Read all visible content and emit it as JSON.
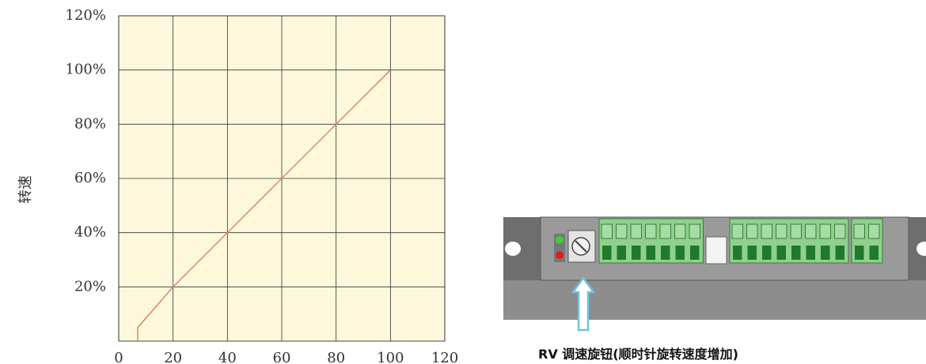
{
  "chart_data": {
    "type": "line",
    "y_label": "转速",
    "x": [
      7,
      7,
      20,
      100
    ],
    "values": [
      0,
      5,
      20,
      100
    ],
    "color": "#d9876a",
    "background": "#fdf8dc",
    "xlim": [
      0,
      120
    ],
    "xticks": [
      0,
      20,
      40,
      60,
      80,
      100,
      120
    ],
    "ylim": [
      0,
      120
    ],
    "yticks": [
      {
        "value": 20,
        "label": "20%"
      },
      {
        "value": 40,
        "label": "40%"
      },
      {
        "value": 60,
        "label": "60%"
      },
      {
        "value": 80,
        "label": "80%"
      },
      {
        "value": 100,
        "label": "100%"
      },
      {
        "value": 120,
        "label": "120%"
      }
    ],
    "grid": true
  },
  "device": {
    "caption": "RV 调速旋钮(顺时针旋转速度增加)"
  }
}
